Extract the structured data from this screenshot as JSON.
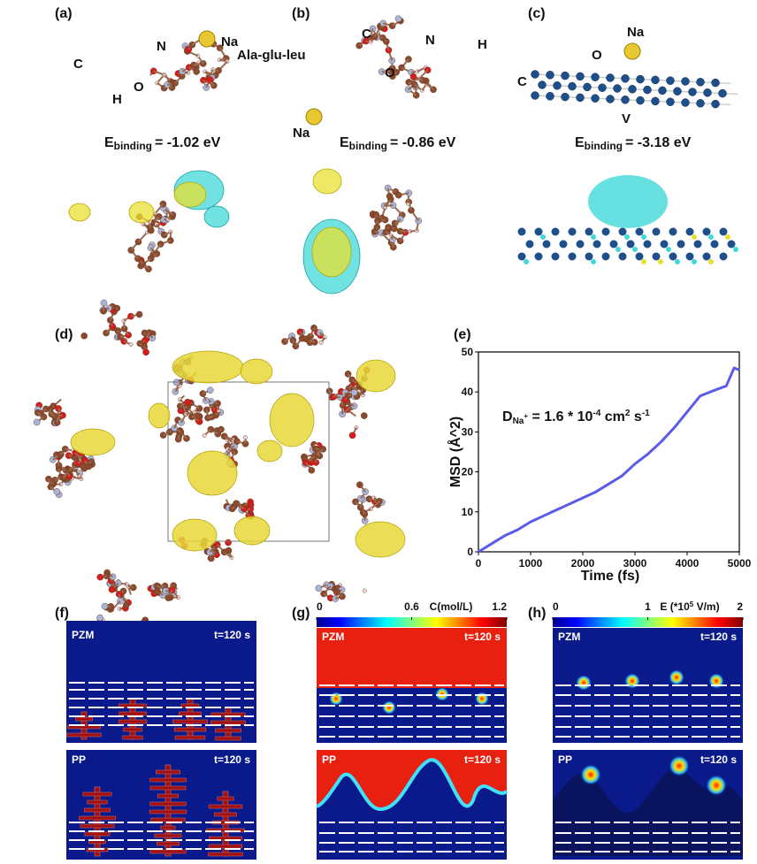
{
  "panels": {
    "a": {
      "label": "(a)",
      "atoms": [
        "Na",
        "N",
        "C",
        "O",
        "H"
      ],
      "molecule": "Ala-glu-leu",
      "energy": [
        "E",
        "binding",
        "= -1.02 eV"
      ]
    },
    "b": {
      "label": "(b)",
      "atoms": [
        "C",
        "N",
        "H",
        "O",
        "Na"
      ],
      "energy": [
        "E",
        "binding",
        "= -0.86 eV"
      ]
    },
    "c": {
      "label": "(c)",
      "atoms": [
        "Na",
        "O",
        "C",
        "V"
      ],
      "energy": [
        "E",
        "binding",
        "= -3.18 eV"
      ]
    },
    "d": {
      "label": "(d)"
    },
    "e": {
      "label": "(e)"
    },
    "f": {
      "label": "(f)",
      "top": [
        "PZM",
        "t=120 s"
      ],
      "bottom": [
        "PP",
        "t=120 s"
      ]
    },
    "g": {
      "label": "(g)",
      "top": [
        "PZM",
        "t=120 s"
      ],
      "bottom": [
        "PP",
        "t=120 s"
      ],
      "colorbar": {
        "label": "C(mol/L)",
        "lim": [
          0,
          1.2
        ],
        "ticks": [
          0,
          0.6,
          1.2
        ]
      }
    },
    "h": {
      "label": "(h)",
      "top": [
        "PZM",
        "t=120 s"
      ],
      "bottom": [
        "PP",
        "t=120 s"
      ],
      "colorbar": {
        "label": [
          "E (*10",
          "5",
          " V/m)"
        ],
        "lim": [
          0,
          2
        ],
        "ticks": [
          0,
          1,
          2
        ]
      }
    }
  },
  "chart_data": {
    "type": "line",
    "xlabel": "Time (fs)",
    "ylabel": "MSD (Å^2)",
    "annotation": [
      "D",
      "Na",
      "+",
      " = 1.6 * 10",
      "-4",
      " cm",
      "2",
      " s",
      "-1"
    ],
    "x": [
      0,
      250,
      500,
      750,
      1000,
      1250,
      1500,
      1750,
      2000,
      2250,
      2500,
      2750,
      3000,
      3250,
      3500,
      3750,
      4000,
      4250,
      4500,
      4750,
      4900,
      5000
    ],
    "values": [
      0,
      2,
      4,
      5.5,
      7.5,
      9,
      10.5,
      12,
      13.5,
      15,
      17,
      19,
      22,
      24.5,
      27.5,
      31,
      35,
      39,
      40.3,
      41.5,
      46,
      45.5
    ],
    "color": "#5b5bea",
    "xlim": [
      0,
      5000
    ],
    "xticks": [
      0,
      1000,
      2000,
      3000,
      4000,
      5000
    ],
    "ylim": [
      0,
      50
    ],
    "yticks": [
      0,
      10,
      20,
      30,
      40,
      50
    ]
  }
}
